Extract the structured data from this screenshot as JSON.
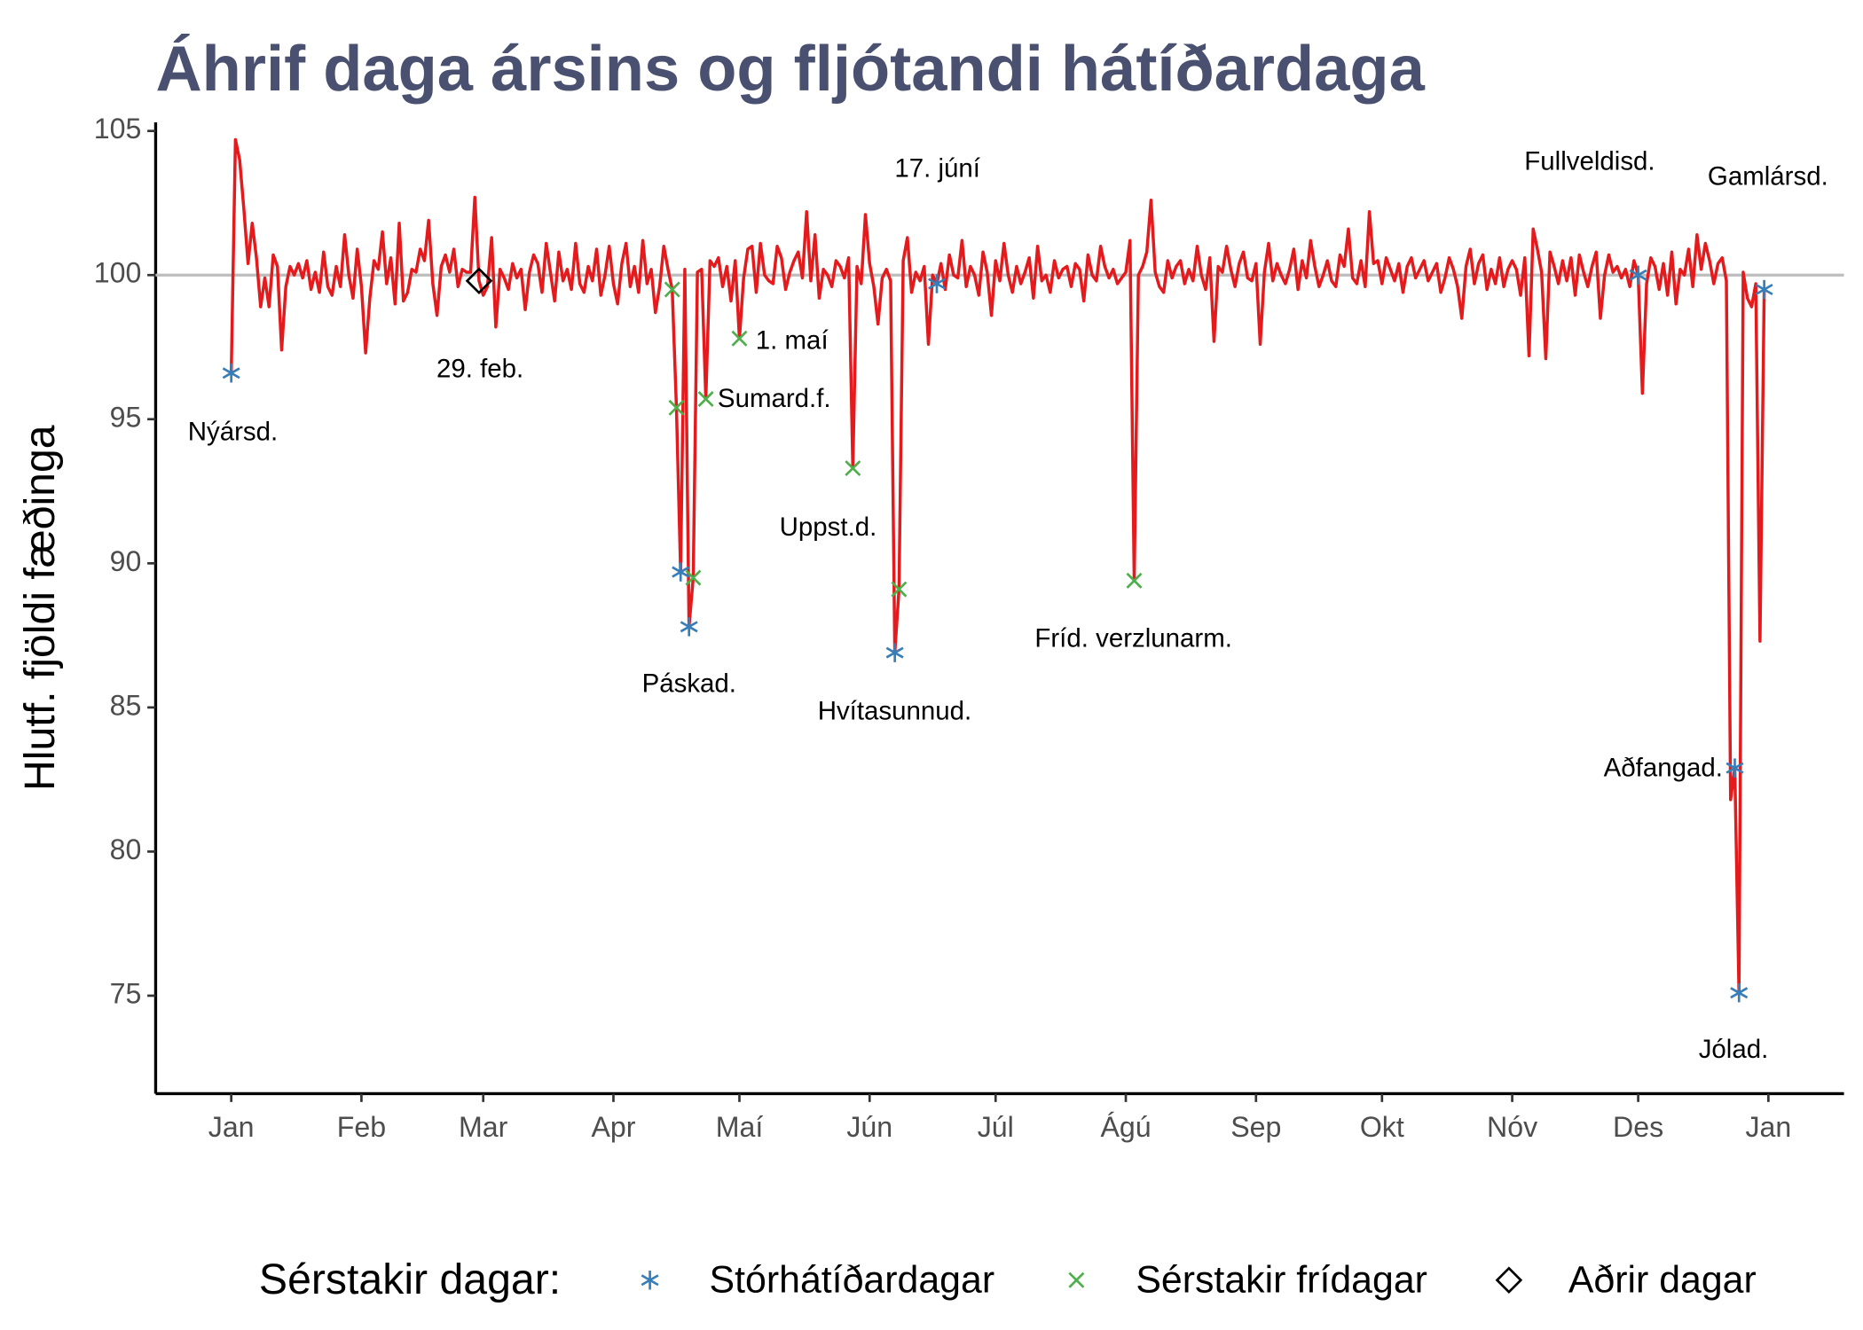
{
  "chart_data": {
    "type": "line",
    "title": "Áhrif daga ársins og fljótandi hátíðardaga",
    "y_label": "Hlutf. fjöldi fæðinga",
    "legend_title": "Sérstakir dagar:",
    "legend_position": "bottom",
    "xlim": [
      -17,
      385
    ],
    "ylim": [
      71.6,
      105.3
    ],
    "xticks": [
      {
        "value": 1,
        "label": "Jan"
      },
      {
        "value": 32,
        "label": "Feb"
      },
      {
        "value": 61,
        "label": "Mar"
      },
      {
        "value": 92,
        "label": "Apr"
      },
      {
        "value": 122,
        "label": "Maí"
      },
      {
        "value": 153,
        "label": "Jún"
      },
      {
        "value": 183,
        "label": "Júl"
      },
      {
        "value": 214,
        "label": "Ágú"
      },
      {
        "value": 245,
        "label": "Sep"
      },
      {
        "value": 275,
        "label": "Okt"
      },
      {
        "value": 306,
        "label": "Nóv"
      },
      {
        "value": 336,
        "label": "Des"
      },
      {
        "value": 367,
        "label": "Jan"
      }
    ],
    "yticks": [
      75,
      80,
      85,
      90,
      95,
      100,
      105
    ],
    "reference_line": 100,
    "line": {
      "color": "#e41a1c",
      "values": [
        96.6,
        104.7,
        104.0,
        102.3,
        100.4,
        101.8,
        100.6,
        98.9,
        99.9,
        98.9,
        100.7,
        100.3,
        97.4,
        99.6,
        100.3,
        100.0,
        100.4,
        99.9,
        100.5,
        99.5,
        100.1,
        99.4,
        100.8,
        99.6,
        99.3,
        100.3,
        99.6,
        101.4,
        100.0,
        99.2,
        100.9,
        99.6,
        97.3,
        99.2,
        100.5,
        100.2,
        101.5,
        99.7,
        100.6,
        99.0,
        101.8,
        99.1,
        99.4,
        100.2,
        100.1,
        100.9,
        100.5,
        101.9,
        99.7,
        98.6,
        100.3,
        100.7,
        100.1,
        100.9,
        99.6,
        100.2,
        100.1,
        100.1,
        102.7,
        99.8,
        99.3,
        99.6,
        101.3,
        98.2,
        100.2,
        99.9,
        99.5,
        100.4,
        99.9,
        100.2,
        98.8,
        100.1,
        100.7,
        100.4,
        99.4,
        101.1,
        100.1,
        99.1,
        100.8,
        99.8,
        100.2,
        99.5,
        101.1,
        99.7,
        99.4,
        100.3,
        99.8,
        100.9,
        99.3,
        100.0,
        101.0,
        99.7,
        99.0,
        100.4,
        101.1,
        99.6,
        100.3,
        99.4,
        101.2,
        99.7,
        100.2,
        98.7,
        99.6,
        101.0,
        100.2,
        99.5,
        95.4,
        89.7,
        100.2,
        87.8,
        89.5,
        100.1,
        100.2,
        95.7,
        100.5,
        100.3,
        100.6,
        99.6,
        100.3,
        99.1,
        100.5,
        97.8,
        99.9,
        100.9,
        101.0,
        99.4,
        101.1,
        100.0,
        99.8,
        99.7,
        101.0,
        100.6,
        99.5,
        100.1,
        100.5,
        100.8,
        99.9,
        102.2,
        99.8,
        101.4,
        99.2,
        100.2,
        100.0,
        99.6,
        100.5,
        100.3,
        99.9,
        100.6,
        93.3,
        100.3,
        99.7,
        102.1,
        100.4,
        99.6,
        98.3,
        99.9,
        100.2,
        99.8,
        86.9,
        89.1,
        100.5,
        101.3,
        99.4,
        100.1,
        99.8,
        100.3,
        97.6,
        100.0,
        99.7,
        100.4,
        99.5,
        100.7,
        100.0,
        99.9,
        101.2,
        99.6,
        100.3,
        100.0,
        99.3,
        100.8,
        100.1,
        98.6,
        100.5,
        99.8,
        101.1,
        100.0,
        99.4,
        100.3,
        99.7,
        100.1,
        100.6,
        99.2,
        101.0,
        99.8,
        100.0,
        99.4,
        100.5,
        99.9,
        100.2,
        100.3,
        99.6,
        100.4,
        100.2,
        99.1,
        100.7,
        100.0,
        99.8,
        101.0,
        100.3,
        99.9,
        100.2,
        99.7,
        99.9,
        100.1,
        101.2,
        89.4,
        100.0,
        100.3,
        100.8,
        102.6,
        100.1,
        99.6,
        99.4,
        100.5,
        99.9,
        100.3,
        100.5,
        99.7,
        100.2,
        99.8,
        101.0,
        100.0,
        99.5,
        100.6,
        97.7,
        100.3,
        100.1,
        101.0,
        100.2,
        99.6,
        100.4,
        100.8,
        99.9,
        99.8,
        100.4,
        97.6,
        100.1,
        101.1,
        99.8,
        100.4,
        100.0,
        99.7,
        100.2,
        100.9,
        99.5,
        100.5,
        99.9,
        101.2,
        100.3,
        99.6,
        100.0,
        100.5,
        99.8,
        99.6,
        100.7,
        100.3,
        101.6,
        99.9,
        99.7,
        100.5,
        99.6,
        102.2,
        100.4,
        100.5,
        99.7,
        100.6,
        100.2,
        99.8,
        100.4,
        99.4,
        100.3,
        100.6,
        99.9,
        100.2,
        100.5,
        99.8,
        100.1,
        100.4,
        99.4,
        99.9,
        100.6,
        100.2,
        99.6,
        98.5,
        100.3,
        100.9,
        99.7,
        100.4,
        100.7,
        99.5,
        100.2,
        99.7,
        100.6,
        99.6,
        100.2,
        100.5,
        100.2,
        99.3,
        100.6,
        97.2,
        101.6,
        100.9,
        100.1,
        97.1,
        100.8,
        100.3,
        99.7,
        100.5,
        99.8,
        100.6,
        99.3,
        100.7,
        100.1,
        99.6,
        100.3,
        100.8,
        98.5,
        100.0,
        100.7,
        100.1,
        100.3,
        99.9,
        100.2,
        99.6,
        100.5,
        100.0,
        95.9,
        99.7,
        100.6,
        100.3,
        99.5,
        100.4,
        99.3,
        100.8,
        99.0,
        100.2,
        100.0,
        100.9,
        99.6,
        101.4,
        100.2,
        101.1,
        100.5,
        99.7,
        100.4,
        100.6,
        99.8,
        81.8,
        82.9,
        75.1,
        100.1,
        99.2,
        98.9,
        99.7,
        87.3,
        99.5
      ]
    },
    "series": [
      {
        "name": "Stórhátíðardagar",
        "color": "#377eb8",
        "shape": "asterisk",
        "x": [
          1,
          108,
          110,
          159,
          169,
          336,
          359,
          360,
          366
        ],
        "values": [
          96.6,
          89.7,
          87.8,
          86.9,
          99.7,
          100.0,
          82.9,
          75.1,
          99.5
        ]
      },
      {
        "name": "Sérstakir frídagar",
        "color": "#4daf4a",
        "shape": "cross",
        "x": [
          106,
          107,
          111,
          114,
          122,
          149,
          160,
          216
        ],
        "values": [
          99.5,
          95.4,
          89.5,
          95.7,
          97.8,
          93.3,
          89.1,
          89.4
        ]
      },
      {
        "name": "Aðrir dagar",
        "color": "#000000",
        "shape": "diamond",
        "x": [
          60
        ],
        "values": [
          99.8
        ]
      }
    ],
    "annotations": [
      "Nýársd.",
      "29. feb.",
      "Páskad.",
      "Sumard.f.",
      "1. maí",
      "Uppst.d.",
      "Hvítasunnud.",
      "17. júní",
      "Fríd. verzlunarm.",
      "Fullveldisd.",
      "Gamlársd.",
      "Aðfangad.",
      "Jólad."
    ]
  }
}
